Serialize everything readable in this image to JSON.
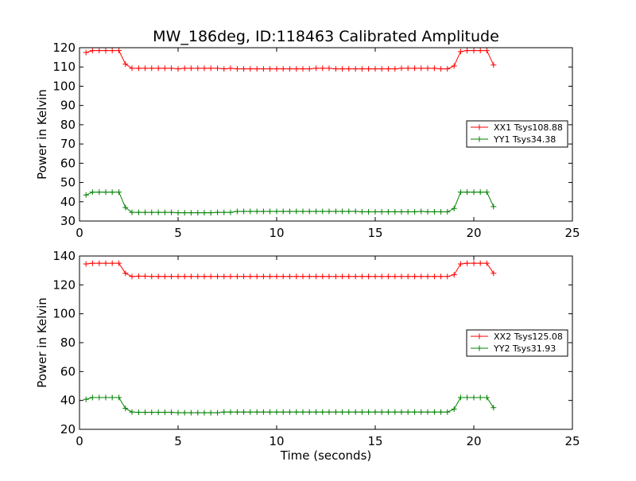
{
  "chart_data": [
    {
      "type": "line",
      "title": "MW_186deg, ID:118463 Calibrated Amplitude",
      "xlabel": "",
      "ylabel": "Power in Kelvin",
      "xlim": [
        0,
        25
      ],
      "ylim": [
        30,
        120
      ],
      "xticks": [
        "0",
        "5",
        "10",
        "15",
        "20",
        "25"
      ],
      "yticks": [
        "30",
        "40",
        "50",
        "60",
        "70",
        "80",
        "90",
        "100",
        "110",
        "120"
      ],
      "legend_position": "center-right",
      "x": [
        0.33,
        0.66,
        1.0,
        1.33,
        1.66,
        2.0,
        2.33,
        2.66,
        3.0,
        3.33,
        3.66,
        4.0,
        4.33,
        4.66,
        5.0,
        5.33,
        5.66,
        6.0,
        6.33,
        6.66,
        7.0,
        7.33,
        7.66,
        8.0,
        8.33,
        8.66,
        9.0,
        9.33,
        9.66,
        10.0,
        10.33,
        10.66,
        11.0,
        11.33,
        11.66,
        12.0,
        12.33,
        12.66,
        13.0,
        13.33,
        13.66,
        14.0,
        14.33,
        14.66,
        15.0,
        15.33,
        15.66,
        16.0,
        16.33,
        16.66,
        17.0,
        17.33,
        17.66,
        18.0,
        18.33,
        18.66,
        19.0,
        19.33,
        19.66,
        20.0,
        20.33,
        20.66,
        21.0
      ],
      "series": [
        {
          "name": "XX1 Tsys108.88",
          "color": "#ff0000",
          "values": [
            117.5,
            118.5,
            118.5,
            118.5,
            118.5,
            118.5,
            111.5,
            109.3,
            109.3,
            109.3,
            109.3,
            109.3,
            109.3,
            109.3,
            109.0,
            109.3,
            109.3,
            109.3,
            109.3,
            109.3,
            109.3,
            109.0,
            109.3,
            109.0,
            109.0,
            109.0,
            109.0,
            109.0,
            109.0,
            109.0,
            109.0,
            109.0,
            109.0,
            109.0,
            109.0,
            109.3,
            109.3,
            109.3,
            109.0,
            109.0,
            109.0,
            109.0,
            109.0,
            109.0,
            109.0,
            109.0,
            109.0,
            109.0,
            109.3,
            109.3,
            109.3,
            109.3,
            109.3,
            109.3,
            109.0,
            109.0,
            110.5,
            118.0,
            118.5,
            118.5,
            118.5,
            118.5,
            111.0
          ]
        },
        {
          "name": "YY1 Tsys34.38",
          "color": "#008000",
          "values": [
            43.5,
            45.0,
            45.0,
            45.0,
            45.0,
            45.0,
            37.0,
            34.5,
            34.5,
            34.5,
            34.5,
            34.5,
            34.5,
            34.5,
            34.3,
            34.3,
            34.3,
            34.3,
            34.3,
            34.3,
            34.5,
            34.5,
            34.5,
            35.0,
            35.0,
            35.0,
            35.0,
            35.0,
            35.0,
            35.0,
            35.0,
            35.0,
            35.0,
            35.0,
            35.0,
            35.0,
            35.0,
            35.0,
            35.0,
            35.0,
            35.0,
            35.0,
            34.8,
            34.8,
            34.8,
            34.8,
            34.8,
            34.8,
            34.8,
            34.8,
            34.8,
            35.0,
            34.8,
            34.8,
            34.8,
            34.8,
            36.5,
            45.0,
            45.0,
            45.0,
            45.0,
            45.0,
            37.5
          ]
        }
      ]
    },
    {
      "type": "line",
      "title": "",
      "xlabel": "Time (seconds)",
      "ylabel": "Power in Kelvin",
      "xlim": [
        0,
        25
      ],
      "ylim": [
        20,
        140
      ],
      "xticks": [
        "0",
        "5",
        "10",
        "15",
        "20",
        "25"
      ],
      "yticks": [
        "20",
        "40",
        "60",
        "80",
        "100",
        "120",
        "140"
      ],
      "legend_position": "center-right",
      "x": [
        0.33,
        0.66,
        1.0,
        1.33,
        1.66,
        2.0,
        2.33,
        2.66,
        3.0,
        3.33,
        3.66,
        4.0,
        4.33,
        4.66,
        5.0,
        5.33,
        5.66,
        6.0,
        6.33,
        6.66,
        7.0,
        7.33,
        7.66,
        8.0,
        8.33,
        8.66,
        9.0,
        9.33,
        9.66,
        10.0,
        10.33,
        10.66,
        11.0,
        11.33,
        11.66,
        12.0,
        12.33,
        12.66,
        13.0,
        13.33,
        13.66,
        14.0,
        14.33,
        14.66,
        15.0,
        15.33,
        15.66,
        16.0,
        16.33,
        16.66,
        17.0,
        17.33,
        17.66,
        18.0,
        18.33,
        18.66,
        19.0,
        19.33,
        19.66,
        20.0,
        20.33,
        20.66,
        21.0
      ],
      "series": [
        {
          "name": "XX2 Tsys125.08",
          "color": "#ff0000",
          "values": [
            134.5,
            135.0,
            135.0,
            135.0,
            135.0,
            135.0,
            128.0,
            125.8,
            126.0,
            126.0,
            125.8,
            125.8,
            125.8,
            125.8,
            125.8,
            125.8,
            125.8,
            125.8,
            125.8,
            125.8,
            125.8,
            125.8,
            125.8,
            125.8,
            125.8,
            125.8,
            125.8,
            125.8,
            125.8,
            125.8,
            125.8,
            125.8,
            125.8,
            125.8,
            125.8,
            125.8,
            125.8,
            125.8,
            125.8,
            125.8,
            125.8,
            125.8,
            125.8,
            125.8,
            125.8,
            125.8,
            125.8,
            125.8,
            125.8,
            125.8,
            125.8,
            125.8,
            125.8,
            125.8,
            125.8,
            125.8,
            127.0,
            134.5,
            135.0,
            135.0,
            135.0,
            135.0,
            128.0
          ]
        },
        {
          "name": "YY2 Tsys31.93",
          "color": "#008000",
          "values": [
            40.8,
            42.0,
            42.0,
            42.0,
            42.0,
            42.0,
            34.5,
            32.0,
            31.8,
            31.8,
            31.8,
            31.8,
            31.8,
            31.8,
            31.5,
            31.5,
            31.5,
            31.5,
            31.5,
            31.5,
            31.5,
            32.0,
            32.0,
            32.0,
            32.0,
            32.0,
            32.0,
            32.0,
            32.0,
            32.0,
            32.0,
            32.0,
            32.0,
            32.0,
            32.0,
            32.0,
            32.0,
            32.0,
            32.0,
            32.0,
            32.0,
            32.0,
            32.0,
            32.0,
            32.0,
            32.0,
            32.0,
            32.0,
            32.0,
            32.0,
            32.0,
            32.0,
            32.0,
            32.0,
            32.0,
            32.0,
            34.0,
            42.0,
            42.0,
            42.0,
            42.0,
            42.0,
            35.0
          ]
        }
      ]
    }
  ]
}
